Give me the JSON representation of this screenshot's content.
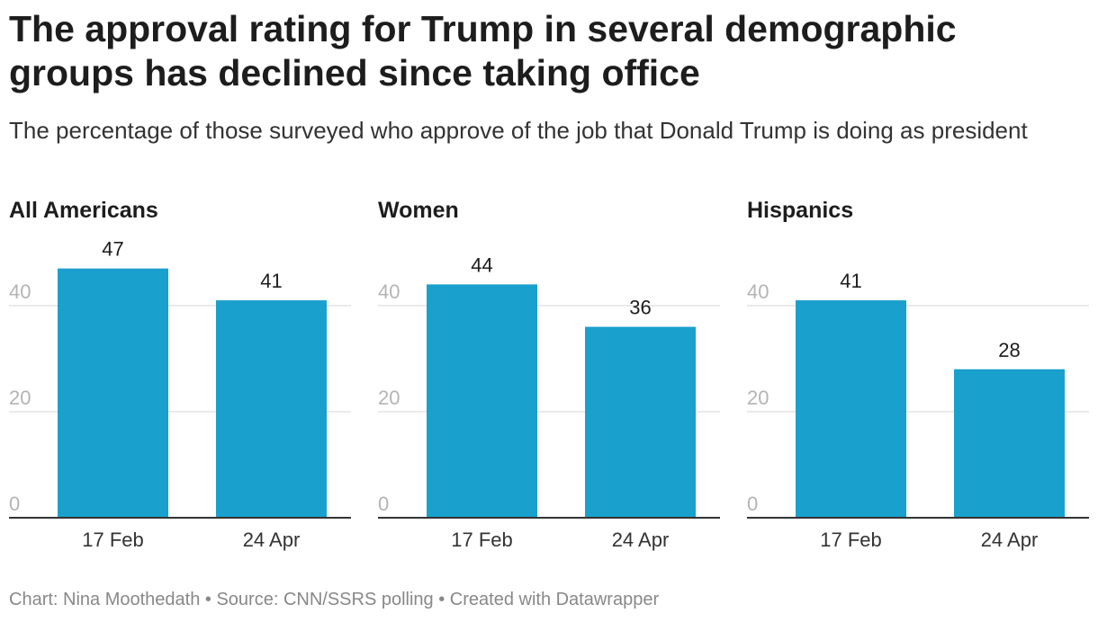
{
  "title": "The approval rating for Trump in several demographic groups has declined since taking office",
  "subtitle": "The percentage of those surveyed who approve of the job that Donald Trump is doing as president",
  "footer": "Chart: Nina Moothedath • Source: CNN/SSRS polling • Created with Datawrapper",
  "colors": {
    "bar": "#1aa0cd"
  },
  "chart_data": [
    {
      "type": "bar",
      "title": "All Americans",
      "categories": [
        "17 Feb",
        "24 Apr"
      ],
      "values": [
        47,
        41
      ],
      "yticks": [
        0,
        20,
        40
      ],
      "ylim": [
        0,
        50
      ],
      "xlabel": "",
      "ylabel": ""
    },
    {
      "type": "bar",
      "title": "Women",
      "categories": [
        "17 Feb",
        "24 Apr"
      ],
      "values": [
        44,
        36
      ],
      "yticks": [
        0,
        20,
        40
      ],
      "ylim": [
        0,
        50
      ],
      "xlabel": "",
      "ylabel": ""
    },
    {
      "type": "bar",
      "title": "Hispanics",
      "categories": [
        "17 Feb",
        "24 Apr"
      ],
      "values": [
        41,
        28
      ],
      "yticks": [
        0,
        20,
        40
      ],
      "ylim": [
        0,
        50
      ],
      "xlabel": "",
      "ylabel": ""
    }
  ]
}
